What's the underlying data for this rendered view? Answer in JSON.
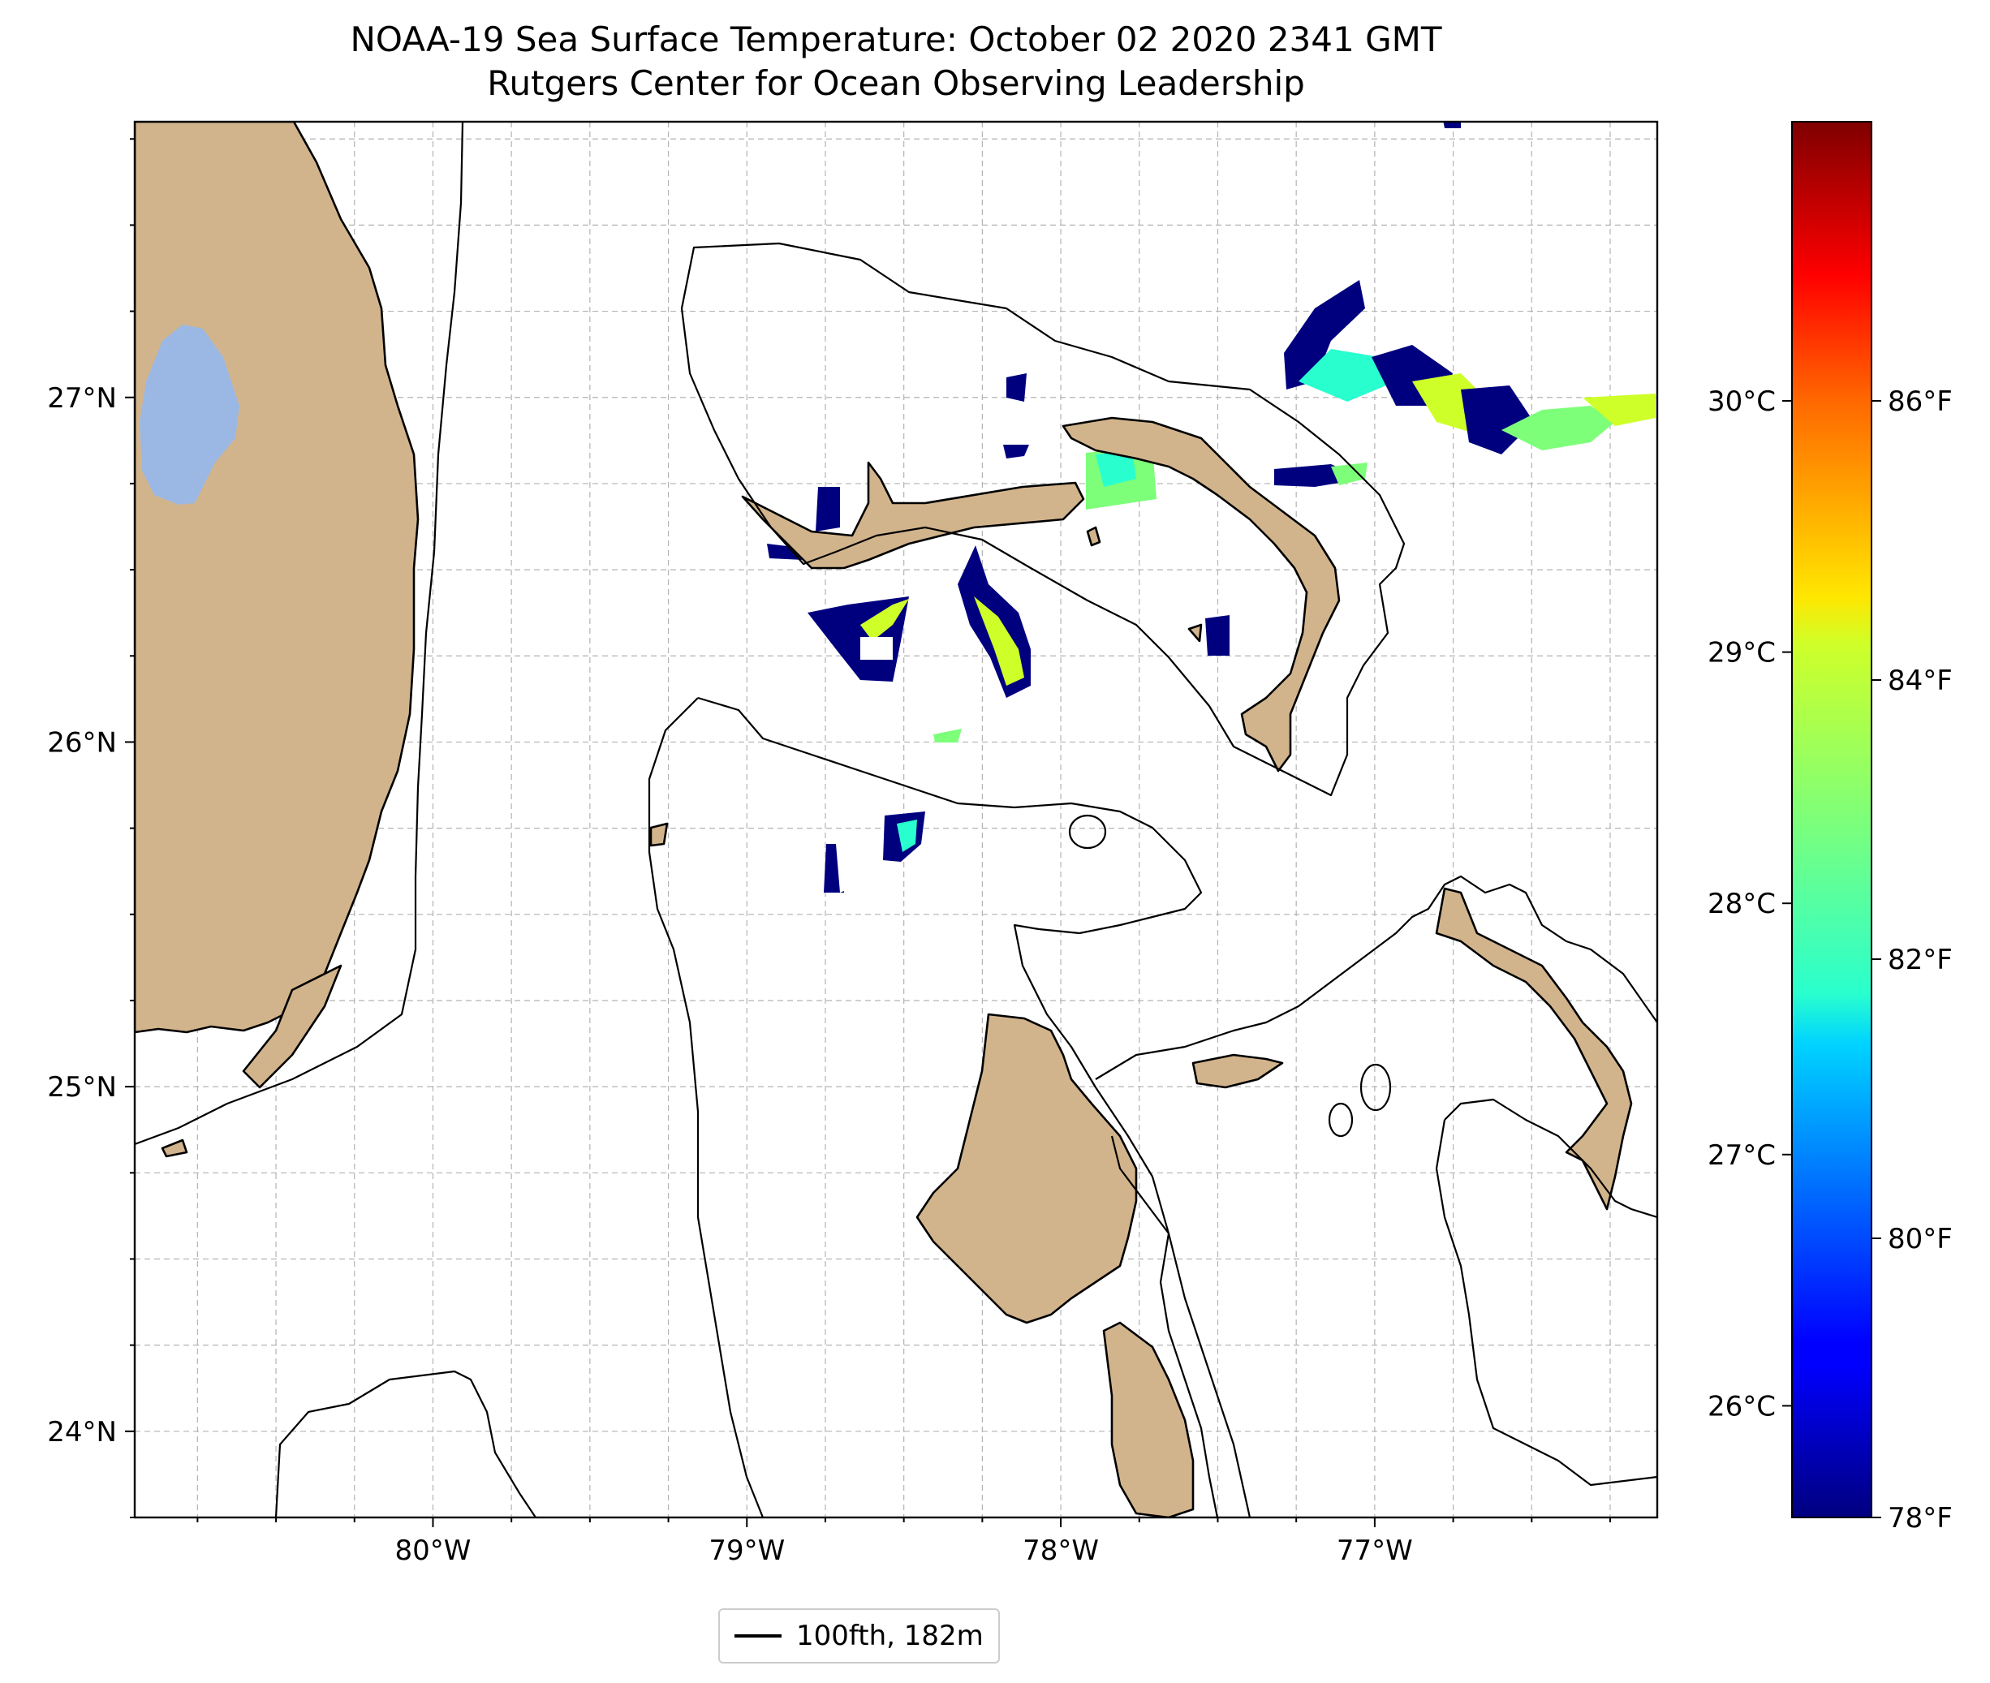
{
  "title": {
    "line1": "NOAA-19 Sea Surface Temperature: October 02 2020 2341 GMT",
    "line2": "Rutgers Center for Ocean Observing Leadership"
  },
  "map": {
    "lon_range": [
      -80.95,
      -76.1
    ],
    "lat_range": [
      23.75,
      27.8
    ],
    "lon_ticks": [
      {
        "value": -80,
        "label": "80°W"
      },
      {
        "value": -79,
        "label": "79°W"
      },
      {
        "value": -78,
        "label": "78°W"
      },
      {
        "value": -77,
        "label": "77°W"
      }
    ],
    "lat_ticks": [
      {
        "value": 27,
        "label": "27°N"
      },
      {
        "value": 26,
        "label": "26°N"
      },
      {
        "value": 25,
        "label": "25°N"
      },
      {
        "value": 24,
        "label": "24°N"
      }
    ],
    "gridlines": "dashed, every 0.25°",
    "land_color": "#d2b48c",
    "lake_color": "#9bb8e4",
    "contour_color": "#000000"
  },
  "colorbar": {
    "colormap": "jet",
    "range_f": [
      78,
      88
    ],
    "celsius_ticks": [
      {
        "value": 30,
        "label": "30°C"
      },
      {
        "value": 29,
        "label": "29°C"
      },
      {
        "value": 28,
        "label": "28°C"
      },
      {
        "value": 27,
        "label": "27°C"
      },
      {
        "value": 26,
        "label": "26°C"
      }
    ],
    "fahrenheit_ticks": [
      {
        "value": 86,
        "label": "86°F"
      },
      {
        "value": 84,
        "label": "84°F"
      },
      {
        "value": 82,
        "label": "82°F"
      },
      {
        "value": 80,
        "label": "80°F"
      },
      {
        "value": 78,
        "label": "78°F"
      }
    ]
  },
  "legend": {
    "label": "100fth, 182m"
  }
}
